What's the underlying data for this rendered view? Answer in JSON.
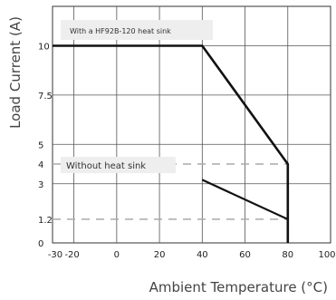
{
  "chart_data": {
    "type": "line",
    "xlabel": "Ambient Temperature (°C)",
    "ylabel": "Load Current (A)",
    "xlim": [
      -30,
      100
    ],
    "ylim": [
      0,
      12
    ],
    "x_ticks": [
      -30,
      -20,
      0,
      20,
      40,
      60,
      80,
      100
    ],
    "x_tick_labels": [
      "-30",
      "-20",
      "0",
      "20",
      "40",
      "60",
      "80",
      "100"
    ],
    "y_ticks": [
      0,
      1.2,
      3,
      4,
      5,
      7.5,
      10
    ],
    "y_tick_labels": [
      "0",
      "1.2",
      "3",
      "4",
      "5",
      "7.5",
      "10"
    ],
    "grid": true,
    "series": [
      {
        "name": "With a HF92B-120 heat sink",
        "x": [
          -30,
          40,
          80,
          80
        ],
        "y": [
          10,
          10,
          4,
          0
        ],
        "color": "#111111",
        "style": "solid"
      },
      {
        "name": "Without heat sink",
        "x": [
          40,
          80,
          80
        ],
        "y": [
          3.2,
          1.2,
          0
        ],
        "color": "#111111",
        "style": "solid"
      }
    ],
    "reference_lines": [
      {
        "y": 4,
        "x_start": -30,
        "x_end": 80,
        "style": "dashed",
        "color": "#aaaaaa"
      },
      {
        "y": 1.2,
        "x_start": -30,
        "x_end": 80,
        "style": "dashed",
        "color": "#aaaaaa"
      }
    ],
    "annotations": [
      {
        "text": "With a HF92B-120 heat sink"
      },
      {
        "text": "Without heat sink"
      }
    ]
  }
}
